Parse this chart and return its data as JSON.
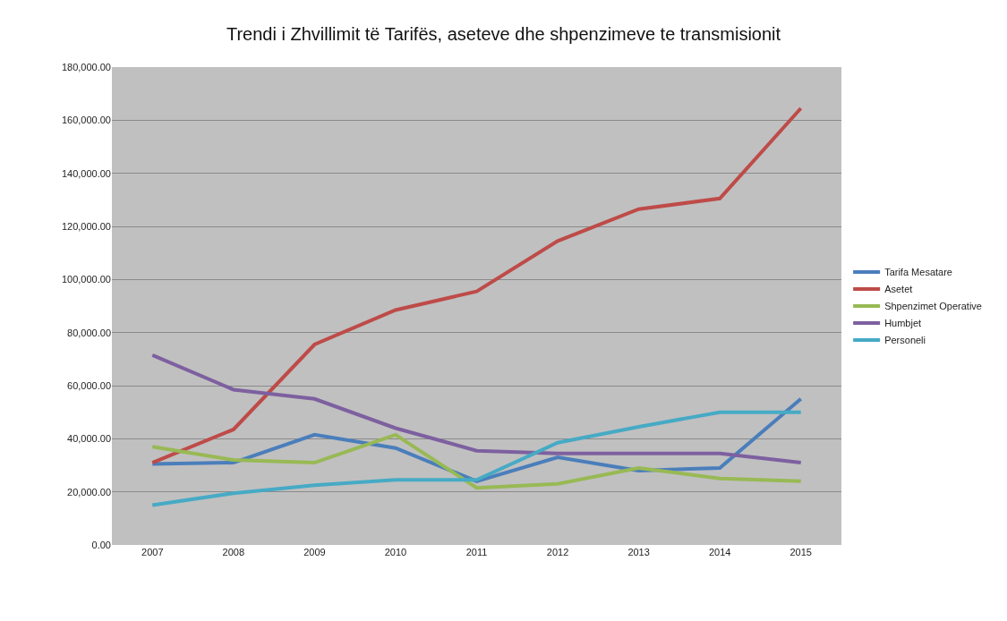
{
  "chart_data": {
    "type": "line",
    "title": "Trendi i Zhvillimit të Tarifës, aseteve dhe shpenzimeve te transmisionit",
    "categories": [
      "2007",
      "2008",
      "2009",
      "2010",
      "2011",
      "2012",
      "2013",
      "2014",
      "2015"
    ],
    "series": [
      {
        "name": "Tarifa Mesatare",
        "color": "#4a7ebb",
        "values": [
          30500,
          31000,
          41500,
          36500,
          24000,
          33000,
          28000,
          29000,
          55000
        ]
      },
      {
        "name": "Asetet",
        "color": "#be4b48",
        "values": [
          31000,
          43500,
          75500,
          88500,
          95500,
          114500,
          126500,
          130500,
          164500
        ]
      },
      {
        "name": "Shpenzimet Operative",
        "color": "#98b954",
        "values": [
          37000,
          32000,
          31000,
          41500,
          21500,
          23000,
          29000,
          25000,
          24000
        ]
      },
      {
        "name": "Humbjet",
        "color": "#7d60a0",
        "values": [
          71500,
          58500,
          55000,
          44000,
          35500,
          34500,
          34500,
          34500,
          31000
        ]
      },
      {
        "name": "Personeli",
        "color": "#46aac5",
        "values": [
          15000,
          19500,
          22500,
          24500,
          24500,
          38500,
          44500,
          50000,
          50000
        ]
      }
    ],
    "ylim": [
      0,
      180000
    ],
    "yticks": [
      {
        "value": 0,
        "label": "0.00"
      },
      {
        "value": 20000,
        "label": "20,000.00"
      },
      {
        "value": 40000,
        "label": "40,000.00"
      },
      {
        "value": 60000,
        "label": "60,000.00"
      },
      {
        "value": 80000,
        "label": "80,000.00"
      },
      {
        "value": 100000,
        "label": "100,000.00"
      },
      {
        "value": 120000,
        "label": "120,000.00"
      },
      {
        "value": 140000,
        "label": "140,000.00"
      },
      {
        "value": 160000,
        "label": "160,000.00"
      },
      {
        "value": 180000,
        "label": "180,000.00"
      }
    ],
    "grid": "y",
    "legend": "right",
    "marker": "none",
    "line_style": "solid"
  }
}
